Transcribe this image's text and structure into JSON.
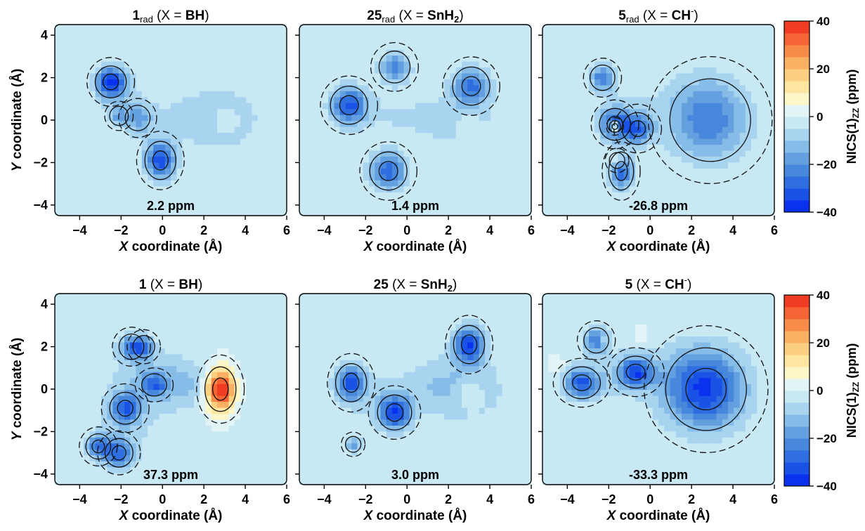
{
  "chart_data": {
    "type": "heatmap",
    "xlabel_italic": "X",
    "xlabel_rest": " coordinate (Å)",
    "ylabel_italic": "Y",
    "ylabel_rest": " coordinate (Å)",
    "xlim": [
      -5.2,
      6
    ],
    "ylim": [
      -4.5,
      4.5
    ],
    "xticks": [
      "−4",
      "−2",
      "0",
      "2",
      "4",
      "6"
    ],
    "xtick_values": [
      -4,
      -2,
      0,
      2,
      4,
      6
    ],
    "yticks": [
      "4",
      "2",
      "0",
      "−2",
      "−4"
    ],
    "ytick_values": [
      4,
      2,
      0,
      -2,
      -4
    ],
    "colorbar": {
      "label_main": "NICS(1)",
      "label_sub": "ZZ",
      "label_unit": " (ppm)",
      "min": -40,
      "max": 40,
      "ticks": [
        "40",
        "20",
        "0",
        "−20",
        "−40"
      ],
      "tick_values": [
        40,
        20,
        0,
        -20,
        -40
      ],
      "colors": [
        "#0a30f0",
        "#1a52e6",
        "#2e6ee0",
        "#4787dc",
        "#64a0e0",
        "#86bce8",
        "#a8d4f0",
        "#c8e8f4",
        "#e2f4f6",
        "#fdf6c8",
        "#fde6a0",
        "#fcce80",
        "#f9b062",
        "#f68c48",
        "#f46434",
        "#f03c22"
      ]
    },
    "panels": [
      {
        "title_main": "1",
        "title_sub": "rad",
        "title_rest": " (X = ",
        "title_x": "BH",
        "title_x2": "",
        "title_sup": "",
        "title_end": ")",
        "ppm": "2.2 ppm",
        "blobs": [
          [
            -2.5,
            1.8,
            0.5,
            0.5,
            -36
          ],
          [
            -1.2,
            0.1,
            0.4,
            0.4,
            -14
          ],
          [
            -0.1,
            -1.9,
            0.5,
            0.6,
            -32
          ],
          [
            -2.1,
            0.2,
            0.3,
            0.3,
            -14
          ],
          [
            3.0,
            0.0,
            1.4,
            1.2,
            -8
          ],
          [
            1.2,
            0.2,
            1.6,
            0.9,
            -4
          ],
          [
            -0.8,
            -0.3,
            0.8,
            0.9,
            -4
          ],
          [
            -2.0,
            1.2,
            0.7,
            0.7,
            -6
          ],
          [
            3.0,
            0.0,
            0.5,
            0.5,
            8
          ]
        ]
      },
      {
        "title_main": "25",
        "title_sub": "rad",
        "title_rest": " (X = ",
        "title_x": "SnH",
        "title_x2": "2",
        "title_sup": "",
        "title_end": ")",
        "ppm": "1.4 ppm",
        "blobs": [
          [
            -2.8,
            0.7,
            0.6,
            0.6,
            -32
          ],
          [
            -0.6,
            2.5,
            0.5,
            0.5,
            -22
          ],
          [
            -0.9,
            -2.4,
            0.6,
            0.6,
            -28
          ],
          [
            3.1,
            1.6,
            0.6,
            0.6,
            -26
          ],
          [
            3.0,
            -0.3,
            1.5,
            1.2,
            -6
          ],
          [
            1.2,
            0.2,
            1.2,
            0.8,
            -4
          ],
          [
            -1.0,
            0.2,
            1.0,
            1.0,
            -4
          ],
          [
            3.0,
            -0.3,
            0.45,
            0.45,
            6
          ]
        ]
      },
      {
        "title_main": "5",
        "title_sub": "rad",
        "title_rest": " (X = ",
        "title_x": "CH",
        "title_x2": "",
        "title_sup": "-",
        "title_end": ")",
        "ppm": "-26.8 ppm",
        "blobs": [
          [
            -2.3,
            2.0,
            0.4,
            0.4,
            -24
          ],
          [
            -1.7,
            -0.2,
            0.5,
            0.5,
            -30
          ],
          [
            -0.6,
            -0.4,
            0.5,
            0.5,
            -26
          ],
          [
            -1.4,
            -2.4,
            0.4,
            0.6,
            -28
          ],
          [
            -1.7,
            -0.3,
            0.18,
            0.18,
            40
          ],
          [
            2.9,
            0.0,
            1.3,
            1.3,
            -22
          ],
          [
            1.8,
            0.6,
            1.5,
            1.3,
            -4
          ],
          [
            -1.3,
            0.7,
            1.0,
            1.0,
            -4
          ],
          [
            -1.6,
            -1.9,
            0.25,
            0.25,
            14
          ]
        ]
      },
      {
        "title_main": "1",
        "title_sub": "",
        "title_rest": " (X = ",
        "title_x": "BH",
        "title_x2": "",
        "title_sup": "",
        "title_end": ")",
        "ppm": "37.3 ppm",
        "blobs": [
          [
            -1.5,
            2.0,
            0.4,
            0.4,
            -22
          ],
          [
            -0.9,
            2.0,
            0.35,
            0.35,
            -20
          ],
          [
            -1.8,
            -0.9,
            0.5,
            0.5,
            -26
          ],
          [
            -0.4,
            0.2,
            0.4,
            0.35,
            -20
          ],
          [
            -3.1,
            -2.7,
            0.4,
            0.4,
            -26
          ],
          [
            -2.1,
            -3.0,
            0.45,
            0.45,
            -26
          ],
          [
            2.8,
            0.0,
            0.5,
            0.7,
            48
          ],
          [
            0.8,
            0.2,
            1.3,
            0.8,
            -10
          ],
          [
            -1.5,
            -1.5,
            1.2,
            1.6,
            -6
          ],
          [
            -0.8,
            1.0,
            1.2,
            0.8,
            -6
          ],
          [
            3.2,
            0.0,
            1.5,
            1.2,
            -3
          ]
        ]
      },
      {
        "title_main": "25",
        "title_sub": "",
        "title_rest": " (X = ",
        "title_x": "SnH",
        "title_x2": "2",
        "title_sup": "",
        "title_end": ")",
        "ppm": "3.0 ppm",
        "blobs": [
          [
            -2.7,
            0.3,
            0.5,
            0.6,
            -30
          ],
          [
            -0.6,
            -1.1,
            0.55,
            0.55,
            -34
          ],
          [
            3.0,
            2.1,
            0.5,
            0.6,
            -34
          ],
          [
            -2.6,
            -2.6,
            0.25,
            0.25,
            -18
          ],
          [
            3.0,
            0.0,
            1.5,
            1.4,
            -8
          ],
          [
            1.2,
            0.2,
            1.3,
            0.8,
            -6
          ],
          [
            -1.5,
            -0.3,
            1.3,
            1.0,
            -4
          ],
          [
            3.0,
            -0.2,
            0.5,
            0.5,
            8
          ]
        ]
      },
      {
        "title_main": "5",
        "title_sub": "",
        "title_rest": " (X = ",
        "title_x": "CH",
        "title_x2": "",
        "title_sup": "-",
        "title_end": ")",
        "ppm": "-33.3 ppm",
        "blobs": [
          [
            -2.6,
            2.3,
            0.4,
            0.4,
            -24
          ],
          [
            -3.3,
            0.3,
            0.6,
            0.5,
            -30
          ],
          [
            -0.7,
            0.8,
            0.6,
            0.5,
            -32
          ],
          [
            2.7,
            0.0,
            1.3,
            1.3,
            -34
          ],
          [
            -2.2,
            2.3,
            0.15,
            0.15,
            10
          ],
          [
            -0.4,
            2.6,
            0.2,
            0.2,
            6
          ],
          [
            -4.5,
            1.2,
            0.2,
            0.2,
            6
          ],
          [
            1.2,
            0.5,
            1.4,
            1.2,
            -5
          ],
          [
            -2.0,
            0.8,
            1.1,
            1.1,
            -4
          ]
        ]
      }
    ]
  }
}
